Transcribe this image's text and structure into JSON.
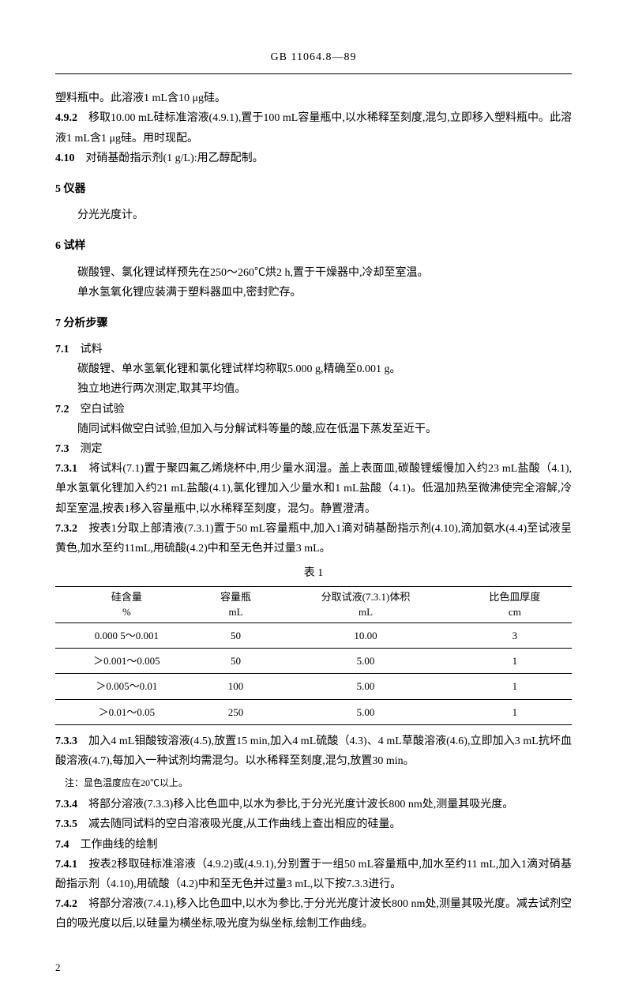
{
  "header": "GB 11064.8—89",
  "p_intro1": "塑料瓶中。此溶液1 mL含10 μg硅。",
  "p_492_label": "4.9.2",
  "p_492": "移取10.00 mL硅标准溶液(4.9.1),置于100 mL容量瓶中,以水稀释至刻度,混匀,立即移入塑料瓶中。此溶液1 mL含1 μg硅。用时现配。",
  "p_410_label": "4.10",
  "p_410": "对硝基酚指示剂(1 g/L):用乙醇配制。",
  "s5_title": "5  仪器",
  "s5_body": "分光光度计。",
  "s6_title": "6  试样",
  "s6_body1": "碳酸锂、氯化锂试样预先在250～260℃烘2 h,置于干燥器中,冷却至室温。",
  "s6_body2": "单水氢氧化锂应装满于塑料器皿中,密封贮存。",
  "s7_title": "7  分析步骤",
  "s71_label": "7.1",
  "s71_title": "试料",
  "s71_body1": "碳酸锂、单水氢氧化锂和氯化锂试样均称取5.000 g,精确至0.001 g。",
  "s71_body2": "独立地进行两次测定,取其平均值。",
  "s72_label": "7.2",
  "s72_title": "空白试验",
  "s72_body": "随同试料做空白试验,但加入与分解试料等量的酸,应在低温下蒸发至近干。",
  "s73_label": "7.3",
  "s73_title": "测定",
  "s731_label": "7.3.1",
  "s731": "将试料(7.1)置于聚四氟乙烯烧杯中,用少量水润湿。盖上表面皿,碳酸锂缓慢加入约23 mL盐酸（4.1),单水氢氧化锂加入约21 mL盐酸(4.1),氯化锂加入少量水和1 mL盐酸（4.1)。低温加热至微沸使完全溶解,冷却至室温,按表1移入容量瓶中,以水稀释至刻度，混匀。静置澄清。",
  "s732_label": "7.3.2",
  "s732": "按表1分取上部清液(7.3.1)置于50 mL容量瓶中,加入1滴对硝基酚指示剂(4.10),滴加氨水(4.4)至试液呈黄色,加水至约11mL,用硫酸(4.2)中和至无色并过量3 mL。",
  "table1_caption": "表 1",
  "table1": {
    "headers": [
      {
        "line1": "硅含量",
        "line2": "%"
      },
      {
        "line1": "容量瓶",
        "line2": "mL"
      },
      {
        "line1": "分取试液(7.3.1)体积",
        "line2": "mL"
      },
      {
        "line1": "比色皿厚度",
        "line2": "cm"
      }
    ],
    "rows": [
      [
        "0.000 5～0.001",
        "50",
        "10.00",
        "3"
      ],
      [
        "＞0.001～0.005",
        "50",
        "5.00",
        "1"
      ],
      [
        "＞0.005～0.01",
        "100",
        "5.00",
        "1"
      ],
      [
        "＞0.01～0.05",
        "250",
        "5.00",
        "1"
      ]
    ]
  },
  "s733_label": "7.3.3",
  "s733": "加入4 mL钼酸铵溶液(4.5),放置15 min,加入4 mL硫酸（4.3)、4 mL草酸溶液(4.6),立即加入3 mL抗坏血酸溶液(4.7),每加入一种试剂均需混匀。以水稀释至刻度,混匀,放置30 min。",
  "s733_note": "注：显色温度应在20℃以上。",
  "s734_label": "7.3.4",
  "s734": "将部分溶液(7.3.3)移入比色皿中,以水为参比,于分光光度计波长800 nm处,测量其吸光度。",
  "s735_label": "7.3.5",
  "s735": "减去随同试料的空白溶液吸光度,从工作曲线上查出相应的硅量。",
  "s74_label": "7.4",
  "s74_title": "工作曲线的绘制",
  "s741_label": "7.4.1",
  "s741": "按表2移取硅标准溶液（4.9.2)或(4.9.1),分别置于一组50 mL容量瓶中,加水至约11 mL,加入1滴对硝基酚指示剂（4.10),用硫酸（4.2)中和至无色并过量3 mL,以下按7.3.3进行。",
  "s742_label": "7.4.2",
  "s742": "将部分溶液(7.4.1),移入比色皿中,以水为参比,于分光光度计波长800 nm处,测量其吸光度。减去试剂空白的吸光度以后,以硅量为横坐标,吸光度为纵坐标,绘制工作曲线。",
  "page_num": "2"
}
